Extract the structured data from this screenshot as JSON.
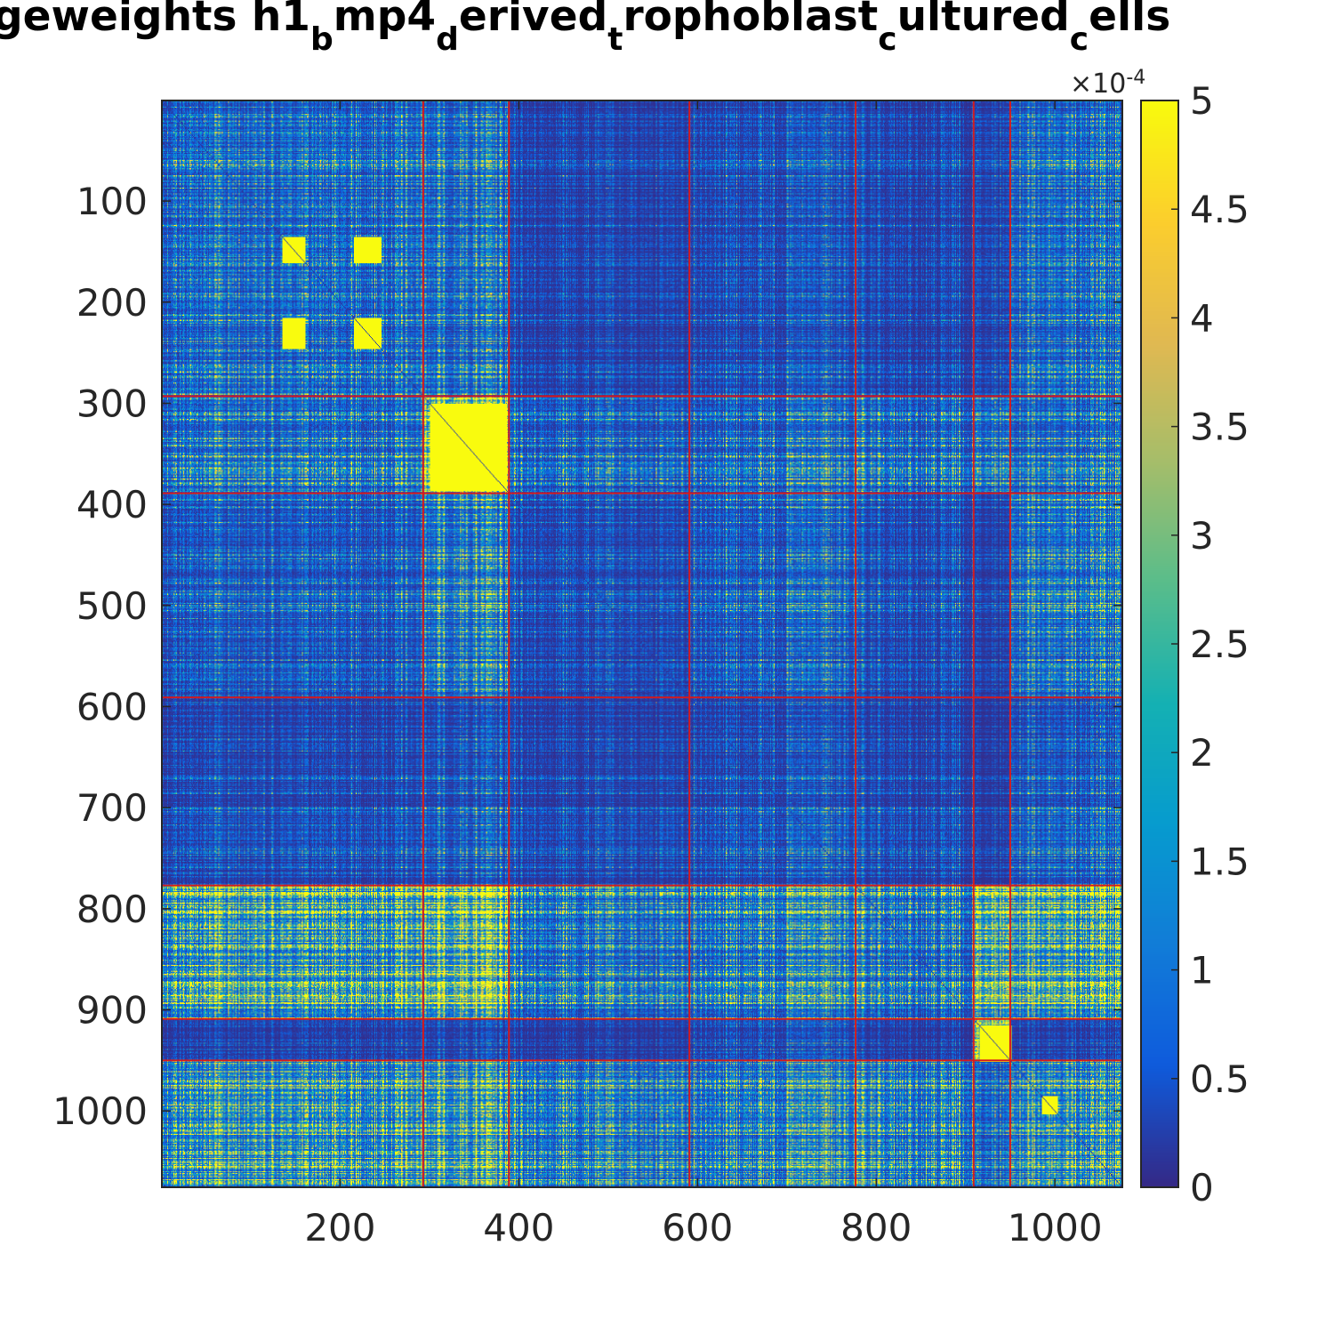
{
  "chart_data": {
    "type": "heatmap",
    "title_segments": [
      {
        "text": "geweights h1",
        "sub": "b"
      },
      {
        "text": "mp4",
        "sub": "d"
      },
      {
        "text": "erived",
        "sub": "t"
      },
      {
        "text": "rophoblast",
        "sub": "c"
      },
      {
        "text": "ultured",
        "sub": "c"
      },
      {
        "text": "ells",
        "sub": ""
      }
    ],
    "matrix_size": 1075,
    "x_ticks": [
      200,
      400,
      600,
      800,
      1000
    ],
    "y_ticks": [
      100,
      200,
      300,
      400,
      500,
      600,
      700,
      800,
      900,
      1000
    ],
    "xlim": [
      0.5,
      1075.5
    ],
    "ylim": [
      0.5,
      1075.5
    ],
    "cluster_boundaries": [
      293,
      389,
      591,
      777,
      909,
      950
    ],
    "boundary_color": "#d7191c",
    "colormap": "parula",
    "clim": [
      0,
      0.0005
    ],
    "colorbar": {
      "ticks": [
        "0",
        "0.5",
        "1",
        "1.5",
        "2",
        "2.5",
        "3",
        "3.5",
        "4",
        "4.5",
        "5"
      ],
      "exponent_base": "×10",
      "exponent": "-4"
    },
    "block_mean_approx_e4": [
      [
        1.2,
        1.3,
        0.4,
        0.6,
        0.4,
        0.5,
        1.2
      ],
      [
        1.3,
        4.8,
        0.9,
        1.1,
        1.0,
        1.4,
        1.2
      ],
      [
        0.8,
        1.6,
        0.5,
        0.9,
        0.5,
        0.4,
        1.4
      ],
      [
        0.5,
        0.7,
        0.4,
        0.6,
        0.4,
        0.3,
        0.8
      ],
      [
        2.6,
        3.6,
        1.3,
        1.6,
        1.2,
        3.5,
        2.8
      ],
      [
        0.4,
        0.5,
        0.3,
        0.6,
        0.3,
        5.0,
        0.4
      ],
      [
        2.4,
        2.6,
        1.6,
        1.8,
        1.6,
        1.2,
        2.2
      ]
    ],
    "hot_blocks": [
      [
        135,
        160
      ],
      [
        215,
        245
      ],
      [
        300,
        385
      ],
      [
        915,
        950
      ],
      [
        985,
        1002
      ]
    ]
  }
}
